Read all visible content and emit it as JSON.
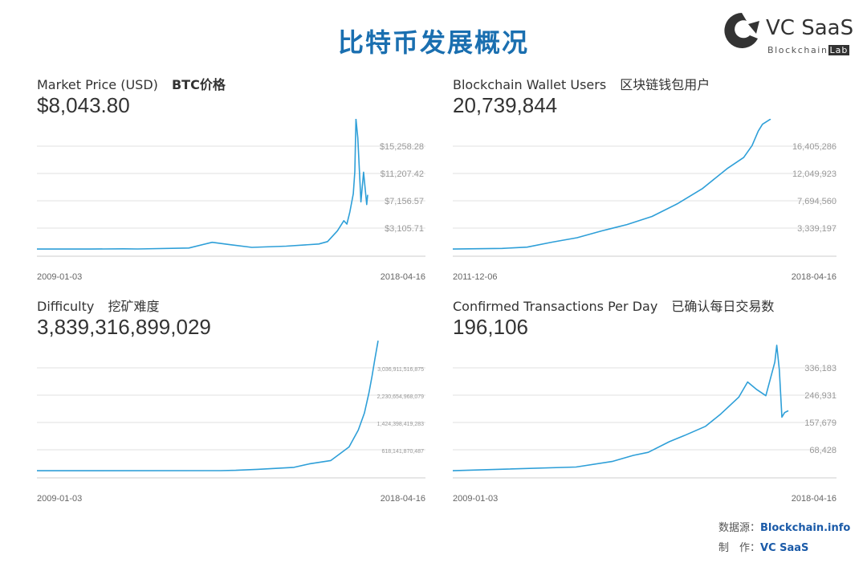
{
  "header": {
    "title": "比特币发展概况"
  },
  "logo": {
    "name": "VC SaaS",
    "sub_a": "Blockchain",
    "sub_b": "Lab"
  },
  "panels": [
    {
      "label": "Market Price (USD)",
      "label_cn": "BTC价格",
      "value": "$8,043.80"
    },
    {
      "label": "Blockchain Wallet Users",
      "label_cn": "区块链钱包用户",
      "value": "20,739,844"
    },
    {
      "label": "Difficulty",
      "label_cn": "挖矿难度",
      "value": "3,839,316,899,029"
    },
    {
      "label": "Confirmed Transactions Per Day",
      "label_cn": "已确认每日交易数",
      "value": "196,106"
    }
  ],
  "footer": {
    "source_label": "数据源：",
    "source_value": "Blockchain.info",
    "maker_label": "制　作：",
    "maker_value": "VC SaaS"
  },
  "colors": {
    "line": "#2e9fd8",
    "title": "#1a6fb0",
    "grid": "#e2e2e2",
    "tick": "#999999"
  },
  "chart_data": [
    {
      "type": "line",
      "title": "Market Price (USD)",
      "x_start": "2009-01-03",
      "x_end": "2018-04-16",
      "y_ticks": [
        3105.71,
        7156.57,
        11207.42,
        15258.28
      ],
      "y_tick_labels": [
        "$3,105.71",
        "$7,156.57",
        "$11,207.42",
        "$15,258.28"
      ],
      "ylim": [
        -945,
        19309
      ],
      "x": [
        "2009-01-03",
        "2010-07-01",
        "2011-06-10",
        "2011-11-01",
        "2013-04-10",
        "2013-12-04",
        "2014-06-01",
        "2015-01-15",
        "2016-01-01",
        "2016-12-01",
        "2017-03-01",
        "2017-06-10",
        "2017-08-15",
        "2017-09-15",
        "2017-10-15",
        "2017-11-20",
        "2017-12-05",
        "2017-12-17",
        "2018-01-05",
        "2018-02-06",
        "2018-03-05",
        "2018-04-06",
        "2018-04-16"
      ],
      "values": [
        0,
        0,
        30,
        3,
        150,
        1000,
        650,
        250,
        430,
        750,
        1100,
        2700,
        4200,
        3700,
        5500,
        8200,
        11500,
        19300,
        16500,
        7000,
        11400,
        6600,
        8043.8
      ]
    },
    {
      "type": "line",
      "title": "Blockchain Wallet Users",
      "x_start": "2011-12-06",
      "x_end": "2018-04-16",
      "y_ticks": [
        3339197,
        7694560,
        12049923,
        16405286
      ],
      "y_tick_labels": [
        "3,339,197",
        "7,694,560",
        "12,049,923",
        "16,405,286"
      ],
      "ylim": [
        -1016166,
        20760649
      ],
      "x": [
        "2011-12-06",
        "2012-12-01",
        "2013-06-01",
        "2013-12-01",
        "2014-06-01",
        "2014-12-01",
        "2015-06-01",
        "2015-12-01",
        "2016-06-01",
        "2016-12-01",
        "2017-06-01",
        "2017-10-01",
        "2017-12-01",
        "2018-01-15",
        "2018-02-15",
        "2018-04-16"
      ],
      "values": [
        0,
        100000,
        300000,
        1100000,
        1800000,
        2900000,
        3900000,
        5200000,
        7200000,
        9600000,
        12800000,
        14600000,
        16500000,
        18800000,
        19900000,
        20739844
      ]
    },
    {
      "type": "line",
      "title": "Difficulty",
      "x_start": "2009-01-03",
      "x_end": "2018-04-16",
      "y_ticks": [
        618141870487,
        1424398419283,
        2230654968079,
        3036911516875
      ],
      "y_tick_labels": [
        "618,141,870,487",
        "1,424,398,419,283",
        "2,230,654,968,079",
        "3,036,911,516,875"
      ],
      "ylim": [
        -188114678309,
        3843167000000
      ],
      "x": [
        "2009-01-03",
        "2014-01-01",
        "2014-06-01",
        "2015-01-01",
        "2016-01-01",
        "2016-06-01",
        "2017-01-01",
        "2017-04-01",
        "2017-07-01",
        "2017-10-01",
        "2017-12-01",
        "2018-01-15",
        "2018-02-15",
        "2018-03-15",
        "2018-04-16"
      ],
      "values": [
        0,
        1500000000,
        11000000000,
        40000000000,
        100000000000,
        200000000000,
        300000000000,
        500000000000,
        700000000000,
        1200000000000,
        1700000000000,
        2300000000000,
        2800000000000,
        3300000000000,
        3839316899029
      ]
    },
    {
      "type": "line",
      "title": "Confirmed Transactions Per Day",
      "x_start": "2009-01-03",
      "x_end": "2018-04-16",
      "y_ticks": [
        68428,
        157679,
        246931,
        336183
      ],
      "y_tick_labels": [
        "68,428",
        "157,679",
        "246,931",
        "336,183"
      ],
      "ylim": [
        -20823,
        425434
      ],
      "x": [
        "2009-01-03",
        "2012-06-01",
        "2013-06-01",
        "2014-01-01",
        "2014-06-01",
        "2015-01-01",
        "2015-06-01",
        "2016-01-01",
        "2016-06-01",
        "2016-12-01",
        "2017-03-01",
        "2017-06-01",
        "2017-09-01",
        "2017-12-01",
        "2017-12-20",
        "2018-01-15",
        "2018-02-10",
        "2018-03-10",
        "2018-04-16"
      ],
      "values": [
        0,
        12000,
        30000,
        50000,
        60000,
        95000,
        115000,
        145000,
        185000,
        240000,
        290000,
        265000,
        245000,
        355000,
        410000,
        330000,
        175000,
        190000,
        196106
      ]
    }
  ]
}
